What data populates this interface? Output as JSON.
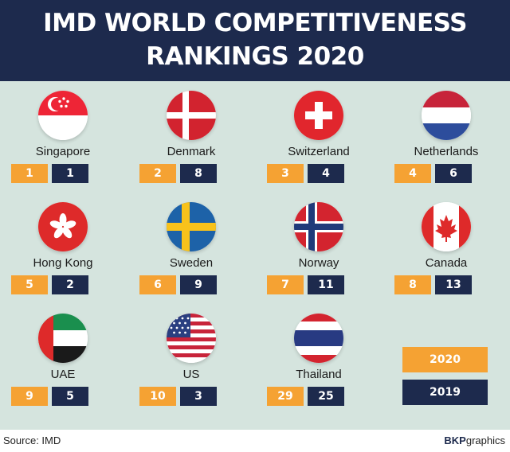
{
  "title": {
    "line1": "IMD WORLD COMPETITIVENESS",
    "line2": "RANKINGS 2020"
  },
  "countries": [
    {
      "name": "Singapore",
      "rank_2020": "1",
      "rank_2019": "1"
    },
    {
      "name": "Denmark",
      "rank_2020": "2",
      "rank_2019": "8"
    },
    {
      "name": "Switzerland",
      "rank_2020": "3",
      "rank_2019": "4"
    },
    {
      "name": "Netherlands",
      "rank_2020": "4",
      "rank_2019": "6"
    },
    {
      "name": "Hong Kong",
      "rank_2020": "5",
      "rank_2019": "2"
    },
    {
      "name": "Sweden",
      "rank_2020": "6",
      "rank_2019": "9"
    },
    {
      "name": "Norway",
      "rank_2020": "7",
      "rank_2019": "11"
    },
    {
      "name": "Canada",
      "rank_2020": "8",
      "rank_2019": "13"
    },
    {
      "name": "UAE",
      "rank_2020": "9",
      "rank_2019": "5"
    },
    {
      "name": "US",
      "rank_2020": "10",
      "rank_2019": "3"
    },
    {
      "name": "Thailand",
      "rank_2020": "29",
      "rank_2019": "25"
    }
  ],
  "legend": {
    "year_2020": "2020",
    "year_2019": "2019"
  },
  "footer": {
    "source": "Source: IMD",
    "credit_bold": "BKP",
    "credit_rest": "graphics"
  },
  "colors": {
    "header_bg": "#1d2a4d",
    "panel_bg": "#d5e4de",
    "orange": "#f5a233",
    "navy": "#1d2a4d"
  }
}
